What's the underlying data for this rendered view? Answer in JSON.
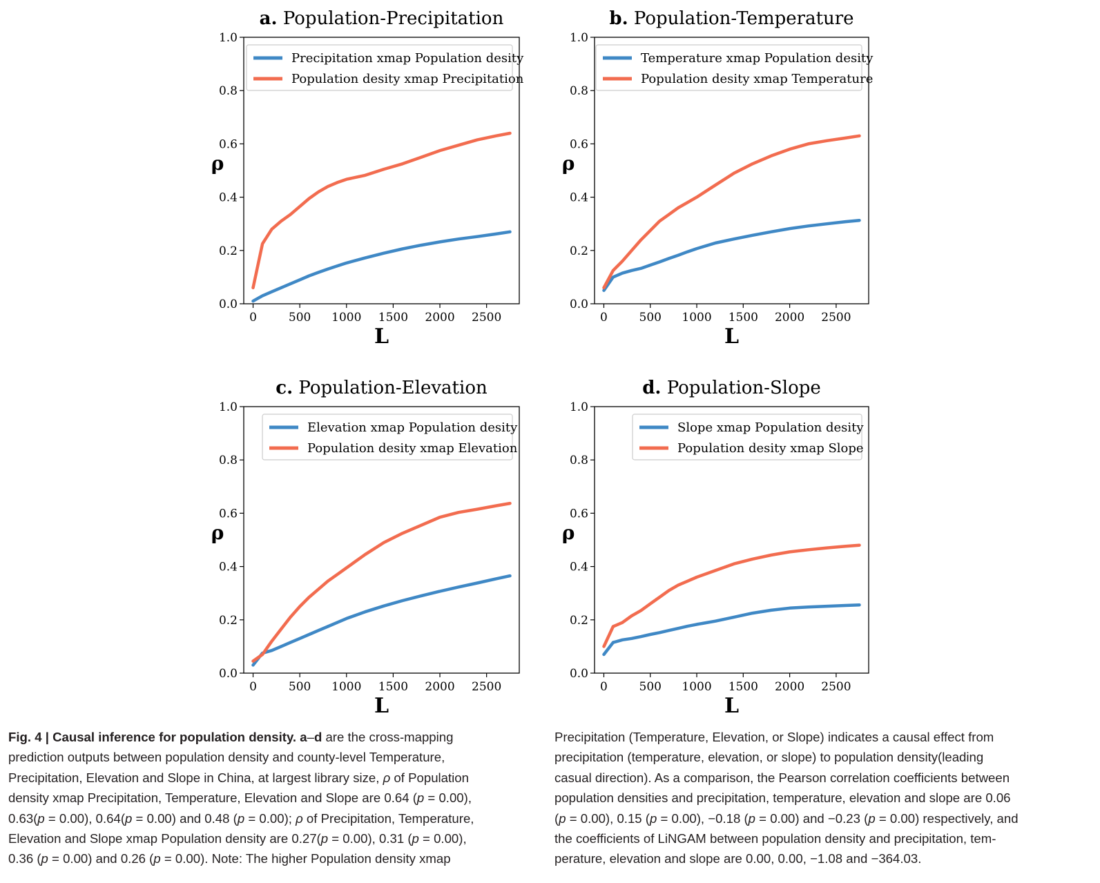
{
  "figure": {
    "y_ticks": [
      "0.0",
      "0.2",
      "0.4",
      "0.6",
      "0.8",
      "1.0"
    ],
    "x_ticks": [
      "0",
      "500",
      "1000",
      "1500",
      "2000",
      "2500"
    ],
    "colors": {
      "xmap_to_population": "#3f88c5",
      "population_xmap": "#f26c4f"
    }
  },
  "chart_data": [
    {
      "type": "line",
      "panel": "a.",
      "title": "Population-Precipitation",
      "xlabel": "L",
      "ylabel": "ρ",
      "xlim": [
        -100,
        2850
      ],
      "ylim": [
        0,
        1
      ],
      "legend_position": "top-right",
      "series": [
        {
          "name": "Precipitation xmap Population desity",
          "color": "#3f88c5",
          "x": [
            0,
            100,
            200,
            300,
            400,
            500,
            600,
            700,
            800,
            900,
            1000,
            1200,
            1400,
            1600,
            1800,
            2000,
            2200,
            2400,
            2600,
            2750
          ],
          "y": [
            0.01,
            0.03,
            0.045,
            0.06,
            0.075,
            0.09,
            0.105,
            0.118,
            0.13,
            0.142,
            0.153,
            0.172,
            0.19,
            0.206,
            0.22,
            0.232,
            0.243,
            0.252,
            0.262,
            0.27
          ]
        },
        {
          "name": "Population desity xmap Precipitation",
          "color": "#f26c4f",
          "x": [
            0,
            100,
            200,
            300,
            400,
            500,
            600,
            700,
            800,
            900,
            1000,
            1200,
            1400,
            1600,
            1800,
            2000,
            2200,
            2400,
            2600,
            2750
          ],
          "y": [
            0.06,
            0.225,
            0.28,
            0.31,
            0.335,
            0.365,
            0.395,
            0.42,
            0.44,
            0.455,
            0.467,
            0.482,
            0.505,
            0.525,
            0.55,
            0.575,
            0.595,
            0.615,
            0.63,
            0.64
          ]
        }
      ]
    },
    {
      "type": "line",
      "panel": "b.",
      "title": "Population-Temperature",
      "xlabel": "L",
      "ylabel": "ρ",
      "xlim": [
        -100,
        2850
      ],
      "ylim": [
        0,
        1
      ],
      "legend_position": "top-right",
      "series": [
        {
          "name": "Temperature xmap Population desity",
          "color": "#3f88c5",
          "x": [
            0,
            100,
            200,
            300,
            400,
            500,
            600,
            700,
            800,
            900,
            1000,
            1200,
            1400,
            1600,
            1800,
            2000,
            2200,
            2400,
            2600,
            2750
          ],
          "y": [
            0.05,
            0.1,
            0.115,
            0.125,
            0.133,
            0.145,
            0.157,
            0.17,
            0.182,
            0.195,
            0.207,
            0.228,
            0.243,
            0.257,
            0.27,
            0.282,
            0.292,
            0.3,
            0.308,
            0.313
          ]
        },
        {
          "name": "Population desity xmap Temperature",
          "color": "#f26c4f",
          "x": [
            0,
            100,
            200,
            300,
            400,
            500,
            600,
            700,
            800,
            900,
            1000,
            1200,
            1400,
            1600,
            1800,
            2000,
            2200,
            2400,
            2600,
            2750
          ],
          "y": [
            0.06,
            0.125,
            0.16,
            0.2,
            0.24,
            0.275,
            0.31,
            0.335,
            0.36,
            0.38,
            0.4,
            0.445,
            0.49,
            0.525,
            0.555,
            0.58,
            0.6,
            0.612,
            0.622,
            0.63
          ]
        }
      ]
    },
    {
      "type": "line",
      "panel": "c.",
      "title": "Population-Elevation",
      "xlabel": "L",
      "ylabel": "ρ",
      "xlim": [
        -100,
        2850
      ],
      "ylim": [
        0,
        1
      ],
      "legend_position": "top-right",
      "series": [
        {
          "name": "Elevation xmap Population desity",
          "color": "#3f88c5",
          "x": [
            0,
            100,
            200,
            300,
            400,
            500,
            600,
            700,
            800,
            900,
            1000,
            1200,
            1400,
            1600,
            1800,
            2000,
            2200,
            2400,
            2600,
            2750
          ],
          "y": [
            0.03,
            0.075,
            0.085,
            0.1,
            0.115,
            0.13,
            0.145,
            0.16,
            0.175,
            0.19,
            0.205,
            0.23,
            0.252,
            0.272,
            0.29,
            0.307,
            0.323,
            0.338,
            0.354,
            0.365
          ]
        },
        {
          "name": "Population desity xmap Elevation",
          "color": "#f26c4f",
          "x": [
            0,
            100,
            200,
            300,
            400,
            500,
            600,
            700,
            800,
            900,
            1000,
            1200,
            1400,
            1600,
            1800,
            2000,
            2200,
            2400,
            2600,
            2750
          ],
          "y": [
            0.045,
            0.07,
            0.12,
            0.165,
            0.21,
            0.25,
            0.285,
            0.315,
            0.345,
            0.37,
            0.395,
            0.445,
            0.49,
            0.525,
            0.555,
            0.585,
            0.603,
            0.615,
            0.628,
            0.637
          ]
        }
      ]
    },
    {
      "type": "line",
      "panel": "d.",
      "title": "Population-Slope",
      "xlabel": "L",
      "ylabel": "ρ",
      "xlim": [
        -100,
        2850
      ],
      "ylim": [
        0,
        1
      ],
      "legend_position": "top-right",
      "series": [
        {
          "name": "Slope xmap Population desity",
          "color": "#3f88c5",
          "x": [
            0,
            100,
            200,
            300,
            400,
            500,
            600,
            700,
            800,
            900,
            1000,
            1200,
            1400,
            1600,
            1800,
            2000,
            2200,
            2400,
            2600,
            2750
          ],
          "y": [
            0.07,
            0.115,
            0.125,
            0.13,
            0.137,
            0.145,
            0.152,
            0.16,
            0.168,
            0.176,
            0.183,
            0.195,
            0.21,
            0.225,
            0.236,
            0.244,
            0.248,
            0.251,
            0.254,
            0.256
          ]
        },
        {
          "name": "Population desity xmap Slope",
          "color": "#f26c4f",
          "x": [
            0,
            100,
            200,
            300,
            400,
            500,
            600,
            700,
            800,
            900,
            1000,
            1200,
            1400,
            1600,
            1800,
            2000,
            2200,
            2400,
            2600,
            2750
          ],
          "y": [
            0.1,
            0.175,
            0.19,
            0.215,
            0.235,
            0.26,
            0.285,
            0.31,
            0.33,
            0.345,
            0.36,
            0.385,
            0.41,
            0.428,
            0.443,
            0.455,
            0.463,
            0.47,
            0.476,
            0.48
          ]
        }
      ]
    }
  ],
  "caption": {
    "left_lines": [
      [
        {
          "t": "Fig. 4 | Causal inference for population density. ",
          "b": true
        },
        {
          "t": "a",
          "b": true
        },
        {
          "t": "–",
          "b": false
        },
        {
          "t": "d",
          "b": true
        },
        {
          "t": " are the cross-mapping",
          "b": false
        }
      ],
      [
        {
          "t": "prediction outputs between population density and county-level Temperature,",
          "b": false
        }
      ],
      [
        {
          "t": "Precipitation, Elevation and Slope in China, at largest library size, ρ of Population",
          "b": false
        }
      ],
      [
        {
          "t": "density xmap Precipitation, Temperature, Elevation and Slope are 0.64 (p = 0.00),",
          "b": false
        }
      ],
      [
        {
          "t": "0.63(p = 0.00), 0.64(p = 0.00) and 0.48 (p = 0.00); ρ of Precipitation, Temperature,",
          "b": false
        }
      ],
      [
        {
          "t": "Elevation and Slope xmap Population density are 0.27(p = 0.00), 0.31 (p = 0.00),",
          "b": false
        }
      ],
      [
        {
          "t": "0.36 (p = 0.00) and 0.26 (p = 0.00). Note: The higher Population density xmap",
          "b": false
        }
      ]
    ],
    "right_lines": [
      "Precipitation (Temperature, Elevation, or Slope) indicates a causal effect from",
      "precipitation (temperature, elevation, or slope) to population density(leading",
      "casual direction). As a comparison, the Pearson correlation coefficients between",
      "population densities and precipitation, temperature, elevation and slope are 0.06",
      "(p = 0.00), 0.15 (p = 0.00), −0.18 (p = 0.00) and −0.23 (p = 0.00) respectively, and",
      "the coefficients of LiNGAM between population density and precipitation, tem-",
      "perature, elevation and slope are 0.00, 0.00, −1.08 and −364.03."
    ]
  }
}
